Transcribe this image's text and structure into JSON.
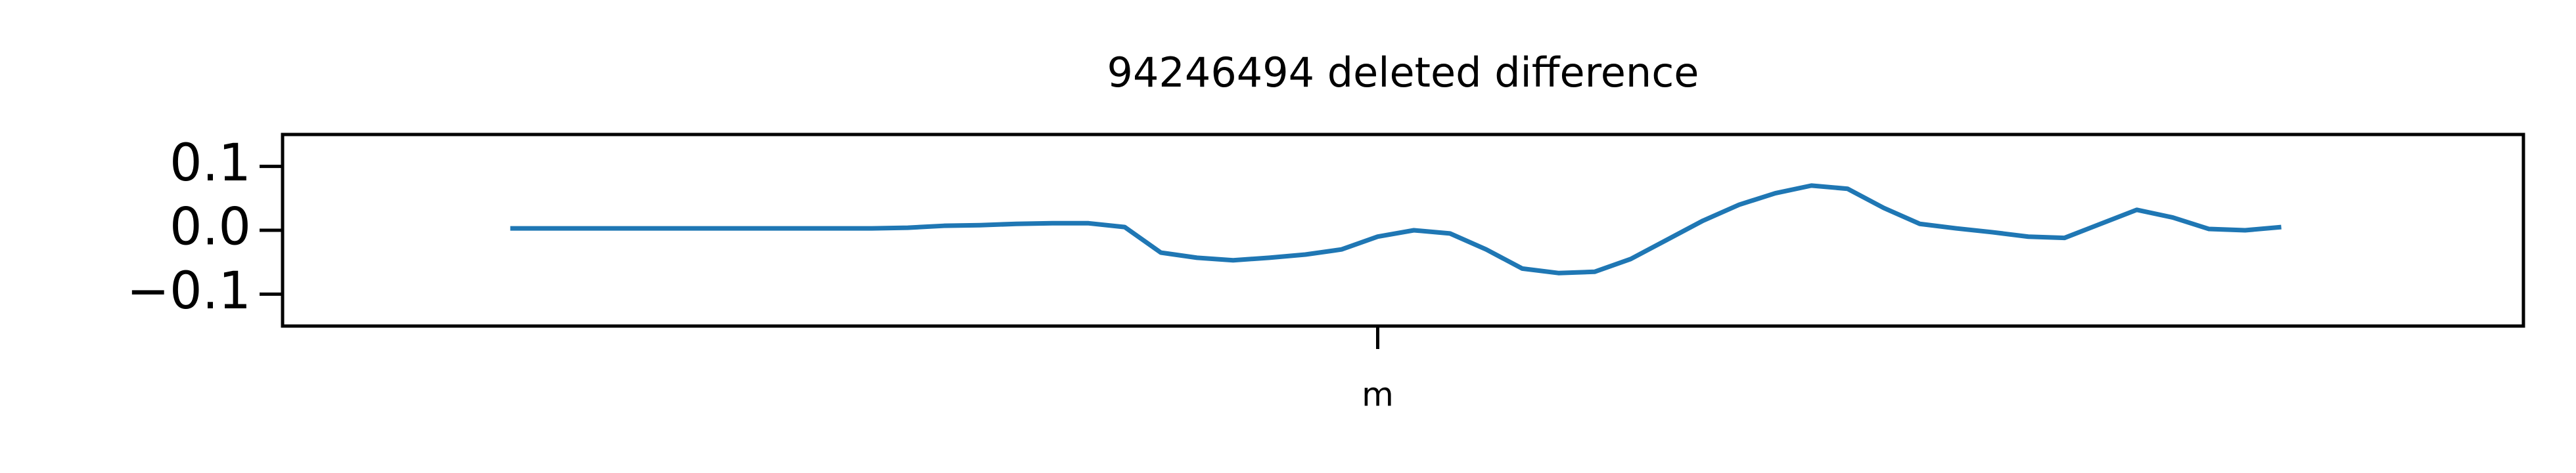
{
  "chart_data": {
    "type": "line",
    "title": "94246494 deleted difference",
    "x": [
      0,
      1,
      2,
      3,
      4,
      5,
      6,
      7,
      8,
      9,
      10,
      11,
      12,
      13,
      14,
      15,
      16,
      17,
      18,
      19,
      20,
      21,
      22,
      23,
      24,
      25,
      26,
      27,
      28,
      29,
      30,
      31,
      32,
      33,
      34,
      35,
      36,
      37,
      38,
      39,
      40,
      41,
      42,
      43,
      44,
      45,
      46,
      47,
      48,
      49
    ],
    "series": [
      {
        "name": "difference",
        "color": "#1f77b4",
        "values": [
          0.003,
          0.003,
          0.003,
          0.003,
          0.003,
          0.003,
          0.003,
          0.003,
          0.003,
          0.003,
          0.003,
          0.004,
          0.007,
          0.008,
          0.01,
          0.011,
          0.011,
          0.005,
          -0.035,
          -0.043,
          -0.047,
          -0.043,
          -0.038,
          -0.03,
          -0.01,
          0.0,
          -0.005,
          -0.03,
          -0.06,
          -0.067,
          -0.065,
          -0.045,
          -0.015,
          0.015,
          0.04,
          0.058,
          0.07,
          0.065,
          0.035,
          0.01,
          0.003,
          -0.003,
          -0.01,
          -0.012,
          0.01,
          0.032,
          0.02,
          0.002,
          0.0,
          0.005
        ]
      }
    ],
    "xlim": [
      -6.3,
      55.7
    ],
    "xticks": [
      {
        "value": 24,
        "label": "m"
      }
    ],
    "ylim": [
      -0.15,
      0.15
    ],
    "yticks": [
      {
        "value": -0.1,
        "label": "−0.1"
      },
      {
        "value": 0,
        "label": "0.0"
      },
      0.1
    ]
  }
}
